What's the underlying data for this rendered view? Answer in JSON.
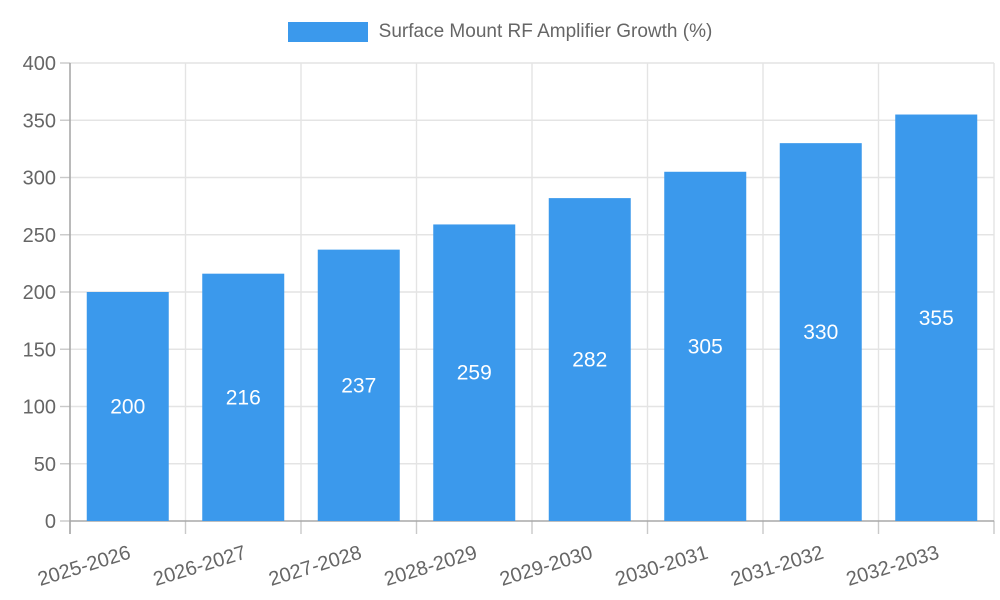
{
  "chart_data": {
    "type": "bar",
    "title": "Surface Mount RF Amplifier Growth (%)",
    "categories": [
      "2025-2026",
      "2026-2027",
      "2027-2028",
      "2028-2029",
      "2029-2030",
      "2030-2031",
      "2031-2032",
      "2032-2033"
    ],
    "values": [
      200,
      216,
      237,
      259,
      282,
      305,
      330,
      355
    ],
    "bar_value_labels": [
      "200",
      "216",
      "237",
      "259",
      "282",
      "305",
      "330",
      "355"
    ],
    "xlabel": "",
    "ylabel": "",
    "ylim": [
      0,
      400
    ],
    "yticks": [
      0,
      50,
      100,
      150,
      200,
      250,
      300,
      350,
      400
    ],
    "grid": true,
    "legend_position": "top",
    "colors": {
      "bar": "#3b99ec",
      "bar_value_text": "#ffffff",
      "axis_text": "#666666",
      "grid_line": "#e4e4e4",
      "axis_line": "#a8a8a8",
      "tick_mark": "#c9c9c9",
      "background": "#ffffff"
    }
  }
}
